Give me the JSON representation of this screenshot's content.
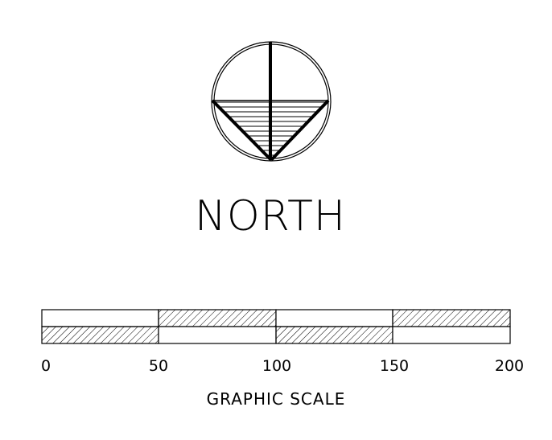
{
  "north_arrow": {
    "label": "NORTH",
    "icon": "north-arrow-icon"
  },
  "graphic_scale": {
    "title": "GRAPHIC SCALE",
    "ticks": [
      "0",
      "50",
      "100",
      "150",
      "200"
    ]
  },
  "colors": {
    "ink": "#000000",
    "paper": "#ffffff"
  }
}
